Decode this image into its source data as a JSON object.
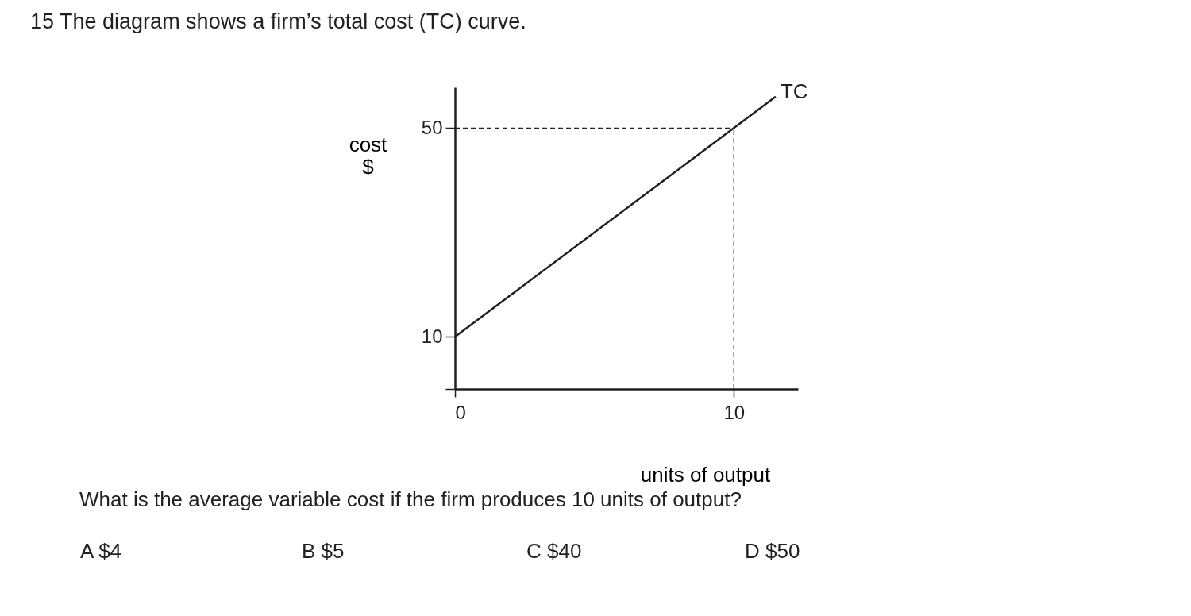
{
  "chart_data": {
    "type": "line",
    "title": "15  The diagram shows a firm’s total cost (TC) curve.",
    "xlabel": "units of output",
    "ylabel": "cost\n$",
    "x": [
      0,
      10,
      11.5
    ],
    "series": [
      {
        "name": "TC",
        "color": "#231f20",
        "values": [
          10,
          50,
          56
        ]
      }
    ],
    "xlim": [
      0,
      12.3
    ],
    "ylim": [
      0,
      57.8
    ],
    "xticks": [
      0,
      10
    ],
    "yticks": [
      {
        "value": 0,
        "label": null
      },
      10,
      50
    ],
    "ref_lines": [
      {
        "axis": "y",
        "value": 50,
        "line_style": "dashed",
        "color": "#231f20"
      },
      {
        "axis": "x",
        "value": 10,
        "line_style": "dashed",
        "color": "#231f20"
      }
    ],
    "annotations": [
      "What is the average variable cost if the firm produces 10 units of output?",
      "A   $4",
      "B   $5",
      "C   $40",
      "D   $50"
    ],
    "grid": false,
    "marker": "none",
    "line_style": "solid"
  }
}
